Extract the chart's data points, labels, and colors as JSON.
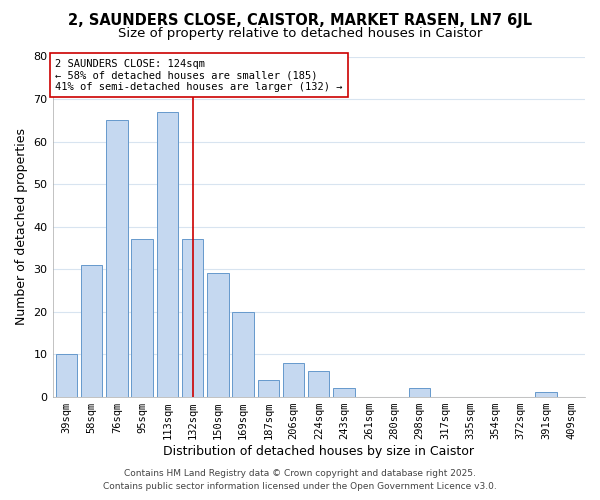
{
  "title": "2, SAUNDERS CLOSE, CAISTOR, MARKET RASEN, LN7 6JL",
  "subtitle": "Size of property relative to detached houses in Caistor",
  "xlabel": "Distribution of detached houses by size in Caistor",
  "ylabel": "Number of detached properties",
  "bar_labels": [
    "39sqm",
    "58sqm",
    "76sqm",
    "95sqm",
    "113sqm",
    "132sqm",
    "150sqm",
    "169sqm",
    "187sqm",
    "206sqm",
    "224sqm",
    "243sqm",
    "261sqm",
    "280sqm",
    "298sqm",
    "317sqm",
    "335sqm",
    "354sqm",
    "372sqm",
    "391sqm",
    "409sqm"
  ],
  "bar_values": [
    10,
    31,
    65,
    37,
    67,
    37,
    29,
    20,
    4,
    8,
    6,
    2,
    0,
    0,
    2,
    0,
    0,
    0,
    0,
    1,
    0
  ],
  "bar_color": "#c5d8f0",
  "bar_edge_color": "#6699cc",
  "vline_bar_index": 5,
  "vline_color": "#cc0000",
  "ylim": [
    0,
    80
  ],
  "yticks": [
    0,
    10,
    20,
    30,
    40,
    50,
    60,
    70,
    80
  ],
  "annotation_title": "2 SAUNDERS CLOSE: 124sqm",
  "annotation_line1": "← 58% of detached houses are smaller (185)",
  "annotation_line2": "41% of semi-detached houses are larger (132) →",
  "footer_line1": "Contains HM Land Registry data © Crown copyright and database right 2025.",
  "footer_line2": "Contains public sector information licensed under the Open Government Licence v3.0.",
  "bg_color": "#ffffff",
  "plot_bg_color": "#ffffff",
  "grid_color": "#d8e4f0",
  "title_fontsize": 10.5,
  "subtitle_fontsize": 9.5,
  "tick_fontsize": 7.5,
  "label_fontsize": 9,
  "footer_fontsize": 6.5
}
